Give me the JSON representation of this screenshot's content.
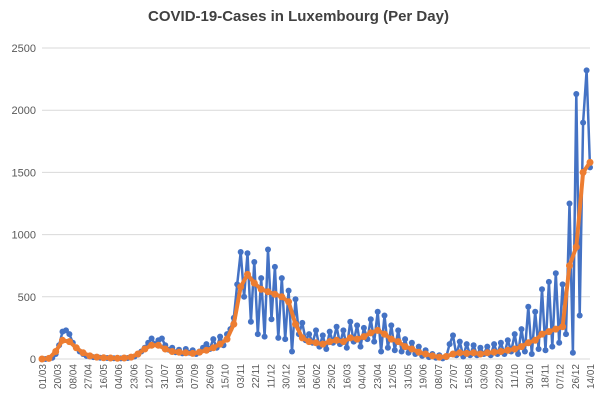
{
  "chart_data": {
    "type": "line",
    "title": "COVID-19-Cases in Luxembourg (Per Day)",
    "xlabel": "",
    "ylabel": "",
    "ylim": [
      0,
      2500
    ],
    "yticks": [
      0,
      500,
      1000,
      1500,
      2000,
      2500
    ],
    "grid": true,
    "legend": "none",
    "categories": [
      "01/03",
      "20/03",
      "08/04",
      "27/04",
      "16/05",
      "04/06",
      "23/06",
      "12/07",
      "31/07",
      "19/08",
      "07/09",
      "26/09",
      "15/10",
      "03/11",
      "22/11",
      "11/12",
      "30/12",
      "18/01",
      "06/02",
      "25/02",
      "16/03",
      "04/04",
      "23/04",
      "12/05",
      "31/05",
      "19/06",
      "08/07",
      "27/07",
      "15/08",
      "03/09",
      "22/09",
      "11/10",
      "30/10",
      "18/11",
      "07/12",
      "26/12",
      "14/01"
    ],
    "series": [
      {
        "color": "#4472c4",
        "points": [
          [
            0,
            0
          ],
          [
            1,
            0
          ],
          [
            2,
            5
          ],
          [
            3,
            10
          ],
          [
            4,
            40
          ],
          [
            5,
            110
          ],
          [
            6,
            220
          ],
          [
            7,
            230
          ],
          [
            8,
            200
          ],
          [
            9,
            130
          ],
          [
            10,
            90
          ],
          [
            11,
            60
          ],
          [
            12,
            40
          ],
          [
            13,
            25
          ],
          [
            14,
            20
          ],
          [
            15,
            15
          ],
          [
            16,
            12
          ],
          [
            17,
            10
          ],
          [
            18,
            8
          ],
          [
            19,
            8
          ],
          [
            20,
            6
          ],
          [
            21,
            6
          ],
          [
            22,
            5
          ],
          [
            23,
            5
          ],
          [
            24,
            6
          ],
          [
            25,
            8
          ],
          [
            26,
            12
          ],
          [
            27,
            20
          ],
          [
            28,
            35
          ],
          [
            29,
            60
          ],
          [
            30,
            90
          ],
          [
            31,
            130
          ],
          [
            32,
            165
          ],
          [
            33,
            120
          ],
          [
            34,
            150
          ],
          [
            35,
            165
          ],
          [
            36,
            110
          ],
          [
            37,
            75
          ],
          [
            38,
            90
          ],
          [
            39,
            55
          ],
          [
            40,
            75
          ],
          [
            41,
            45
          ],
          [
            42,
            80
          ],
          [
            43,
            50
          ],
          [
            44,
            70
          ],
          [
            45,
            40
          ],
          [
            46,
            60
          ],
          [
            47,
            90
          ],
          [
            48,
            120
          ],
          [
            49,
            80
          ],
          [
            50,
            160
          ],
          [
            51,
            90
          ],
          [
            52,
            180
          ],
          [
            53,
            110
          ],
          [
            54,
            200
          ],
          [
            55,
            240
          ],
          [
            56,
            330
          ],
          [
            57,
            600
          ],
          [
            58,
            860
          ],
          [
            59,
            500
          ],
          [
            60,
            850
          ],
          [
            61,
            300
          ],
          [
            62,
            780
          ],
          [
            63,
            200
          ],
          [
            64,
            650
          ],
          [
            65,
            180
          ],
          [
            66,
            880
          ],
          [
            67,
            320
          ],
          [
            68,
            740
          ],
          [
            69,
            170
          ],
          [
            70,
            650
          ],
          [
            71,
            160
          ],
          [
            72,
            550
          ],
          [
            73,
            60
          ],
          [
            74,
            480
          ],
          [
            75,
            200
          ],
          [
            76,
            290
          ],
          [
            77,
            150
          ],
          [
            78,
            200
          ],
          [
            79,
            130
          ],
          [
            80,
            230
          ],
          [
            81,
            100
          ],
          [
            82,
            190
          ],
          [
            83,
            80
          ],
          [
            84,
            220
          ],
          [
            85,
            130
          ],
          [
            86,
            260
          ],
          [
            87,
            120
          ],
          [
            88,
            230
          ],
          [
            89,
            90
          ],
          [
            90,
            300
          ],
          [
            91,
            140
          ],
          [
            92,
            270
          ],
          [
            93,
            100
          ],
          [
            94,
            250
          ],
          [
            95,
            160
          ],
          [
            96,
            320
          ],
          [
            97,
            140
          ],
          [
            98,
            380
          ],
          [
            99,
            60
          ],
          [
            100,
            350
          ],
          [
            101,
            90
          ],
          [
            102,
            270
          ],
          [
            103,
            70
          ],
          [
            104,
            230
          ],
          [
            105,
            60
          ],
          [
            106,
            160
          ],
          [
            107,
            50
          ],
          [
            108,
            130
          ],
          [
            109,
            40
          ],
          [
            110,
            100
          ],
          [
            111,
            25
          ],
          [
            112,
            70
          ],
          [
            113,
            15
          ],
          [
            114,
            40
          ],
          [
            115,
            10
          ],
          [
            116,
            30
          ],
          [
            117,
            5
          ],
          [
            118,
            15
          ],
          [
            119,
            120
          ],
          [
            120,
            190
          ],
          [
            121,
            30
          ],
          [
            122,
            140
          ],
          [
            123,
            20
          ],
          [
            124,
            120
          ],
          [
            125,
            30
          ],
          [
            126,
            110
          ],
          [
            127,
            30
          ],
          [
            128,
            90
          ],
          [
            129,
            40
          ],
          [
            130,
            100
          ],
          [
            131,
            30
          ],
          [
            132,
            120
          ],
          [
            133,
            40
          ],
          [
            134,
            130
          ],
          [
            135,
            40
          ],
          [
            136,
            150
          ],
          [
            137,
            60
          ],
          [
            138,
            200
          ],
          [
            139,
            40
          ],
          [
            140,
            240
          ],
          [
            141,
            60
          ],
          [
            142,
            420
          ],
          [
            143,
            40
          ],
          [
            144,
            380
          ],
          [
            145,
            80
          ],
          [
            146,
            560
          ],
          [
            147,
            70
          ],
          [
            148,
            620
          ],
          [
            149,
            100
          ],
          [
            150,
            690
          ],
          [
            151,
            130
          ],
          [
            152,
            600
          ],
          [
            153,
            200
          ],
          [
            154,
            1250
          ],
          [
            155,
            50
          ],
          [
            156,
            2130
          ],
          [
            157,
            350
          ],
          [
            158,
            1900
          ],
          [
            159,
            2320
          ],
          [
            160,
            1540
          ]
        ]
      },
      {
        "color": "#ed7d31",
        "points": [
          [
            0,
            0
          ],
          [
            2,
            5
          ],
          [
            4,
            60
          ],
          [
            6,
            150
          ],
          [
            8,
            140
          ],
          [
            10,
            90
          ],
          [
            12,
            50
          ],
          [
            14,
            25
          ],
          [
            16,
            15
          ],
          [
            18,
            10
          ],
          [
            20,
            8
          ],
          [
            22,
            6
          ],
          [
            24,
            8
          ],
          [
            26,
            15
          ],
          [
            28,
            40
          ],
          [
            30,
            80
          ],
          [
            32,
            110
          ],
          [
            34,
            110
          ],
          [
            36,
            80
          ],
          [
            38,
            60
          ],
          [
            40,
            55
          ],
          [
            42,
            50
          ],
          [
            44,
            45
          ],
          [
            46,
            55
          ],
          [
            48,
            70
          ],
          [
            50,
            90
          ],
          [
            52,
            120
          ],
          [
            54,
            160
          ],
          [
            56,
            280
          ],
          [
            58,
            580
          ],
          [
            60,
            680
          ],
          [
            62,
            610
          ],
          [
            64,
            560
          ],
          [
            66,
            540
          ],
          [
            68,
            520
          ],
          [
            70,
            500
          ],
          [
            72,
            460
          ],
          [
            74,
            280
          ],
          [
            76,
            170
          ],
          [
            78,
            140
          ],
          [
            80,
            130
          ],
          [
            82,
            120
          ],
          [
            84,
            140
          ],
          [
            86,
            150
          ],
          [
            88,
            140
          ],
          [
            90,
            170
          ],
          [
            92,
            160
          ],
          [
            94,
            180
          ],
          [
            96,
            210
          ],
          [
            98,
            230
          ],
          [
            100,
            200
          ],
          [
            102,
            160
          ],
          [
            104,
            140
          ],
          [
            106,
            100
          ],
          [
            108,
            80
          ],
          [
            110,
            55
          ],
          [
            112,
            40
          ],
          [
            114,
            25
          ],
          [
            116,
            15
          ],
          [
            118,
            20
          ],
          [
            120,
            40
          ],
          [
            122,
            50
          ],
          [
            124,
            45
          ],
          [
            126,
            50
          ],
          [
            128,
            40
          ],
          [
            130,
            50
          ],
          [
            132,
            55
          ],
          [
            134,
            60
          ],
          [
            136,
            70
          ],
          [
            138,
            80
          ],
          [
            140,
            100
          ],
          [
            142,
            130
          ],
          [
            144,
            150
          ],
          [
            146,
            200
          ],
          [
            148,
            220
          ],
          [
            150,
            240
          ],
          [
            152,
            260
          ],
          [
            154,
            750
          ],
          [
            156,
            900
          ],
          [
            158,
            1500
          ],
          [
            160,
            1580
          ]
        ]
      }
    ]
  }
}
